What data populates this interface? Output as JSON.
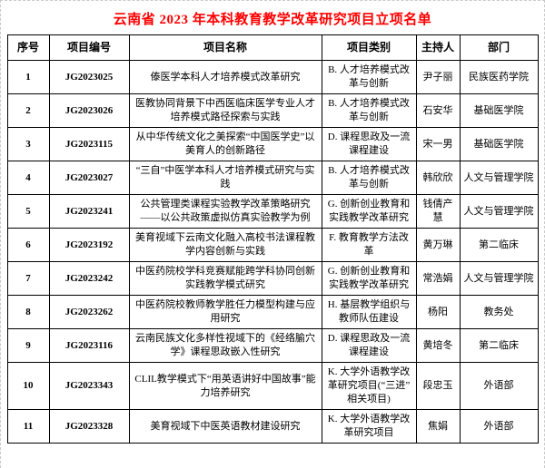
{
  "page": {
    "title": "云南省 2023 年本科教育教学改革研究项目立项名单",
    "title_color": "#ff0000"
  },
  "table": {
    "headers": {
      "no": "序号",
      "code": "项目编号",
      "name": "项目名称",
      "category": "项目类别",
      "host": "主持人",
      "dept": "部门"
    },
    "rows": [
      {
        "no": "1",
        "code": "JG2023025",
        "name": "傣医学本科人才培养模式改革研究",
        "category": "B. 人才培养模式改革与创新",
        "host": "尹子丽",
        "dept": "民族医药学院"
      },
      {
        "no": "2",
        "code": "JG2023026",
        "name": "医教协同背景下中西医临床医学专业人才培养模式路径探索与实践",
        "category": "B. 人才培养模式改革与创新",
        "host": "石安华",
        "dept": "基础医学院"
      },
      {
        "no": "3",
        "code": "JG2023115",
        "name": "从中华传统文化之美探索“中国医学史”以美育人的创新路径",
        "category": "D. 课程思政及一流课程建设",
        "host": "宋一男",
        "dept": "基础医学院"
      },
      {
        "no": "4",
        "code": "JG2023027",
        "name": "“三自”中医学本科人才培养模式研究与实践",
        "category": "B. 人才培养模式改革与创新",
        "host": "韩欣欣",
        "dept": "人文与管理学院"
      },
      {
        "no": "5",
        "code": "JG2023241",
        "name": "公共管理类课程实验教学改革策略研究——以公共政策虚拟仿真实验教学为例",
        "category": "G. 创新创业教育和实践教学改革研究",
        "host": "钱倩产慧",
        "dept": "人文与管理学院"
      },
      {
        "no": "6",
        "code": "JG2023192",
        "name": "美育视域下云南文化融入高校书法课程教学内容创新与实践",
        "category": "F. 教育教学方法改革",
        "host": "黄万琳",
        "dept": "第二临床"
      },
      {
        "no": "7",
        "code": "JG2023242",
        "name": "中医药院校学科竞赛赋能跨学科协同创新实践教学模式研究",
        "category": "G. 创新创业教育和实践教学改革研究",
        "host": "常浩娟",
        "dept": "人文与管理学院"
      },
      {
        "no": "8",
        "code": "JG2023262",
        "name": "中医药院校教师教学胜任力模型构建与应用研究",
        "category": "H. 基层教学组织与教师队伍建设",
        "host": "杨阳",
        "dept": "教务处"
      },
      {
        "no": "9",
        "code": "JG2023116",
        "name": "云南民族文化多样性视域下的《经络腧穴学》课程思政嵌入性研究",
        "category": "D. 课程思政及一流课程建设",
        "host": "黄培冬",
        "dept": "第二临床"
      },
      {
        "no": "10",
        "code": "JG2023343",
        "name": "CLIL教学模式下“用英语讲好中国故事”能力培养研究",
        "category": "K. 大学外语教学改革研究项目(“三进”相关项目)",
        "host": "段忠玉",
        "dept": "外语部"
      },
      {
        "no": "11",
        "code": "JG2023328",
        "name": "美育视域下中医英语教材建设研究",
        "category": "K. 大学外语教学改革研究项目",
        "host": "焦娟",
        "dept": "外语部"
      }
    ]
  }
}
